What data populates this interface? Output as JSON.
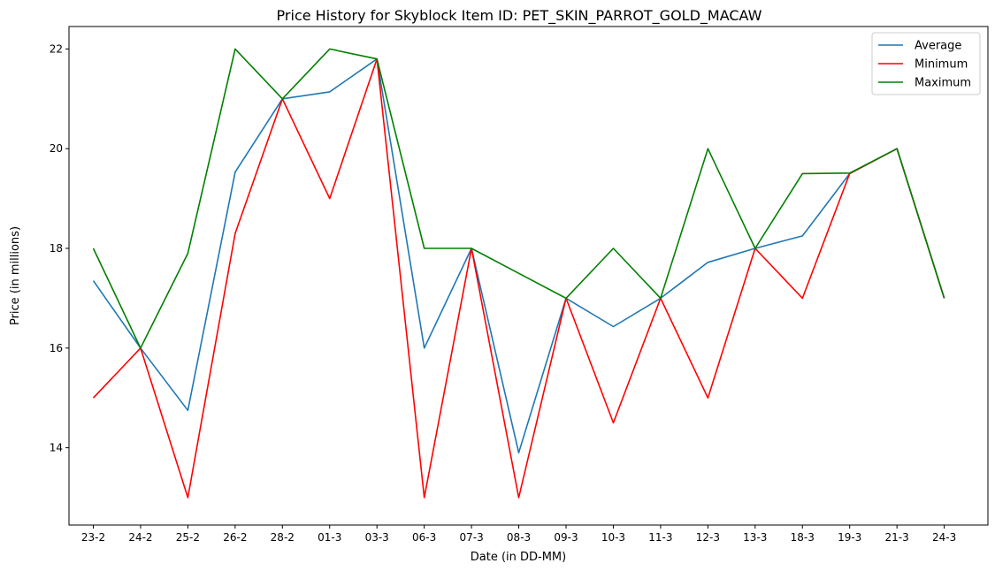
{
  "chart_data": {
    "type": "line",
    "title": "Price History for Skyblock Item ID: PET_SKIN_PARROT_GOLD_MACAW",
    "xlabel": "Date (in DD-MM)",
    "ylabel": "Price (in millions)",
    "categories": [
      "23-2",
      "24-2",
      "25-2",
      "26-2",
      "28-2",
      "01-3",
      "03-3",
      "06-3",
      "07-3",
      "08-3",
      "09-3",
      "10-3",
      "11-3",
      "12-3",
      "13-3",
      "18-3",
      "19-3",
      "21-3",
      "24-3"
    ],
    "yticks": [
      14,
      16,
      18,
      20,
      22
    ],
    "ylim": [
      12.45,
      22.45
    ],
    "grid": false,
    "legend_position": "top-right",
    "series": [
      {
        "name": "Average",
        "color": "#1f77b4",
        "values": [
          17.35,
          16.0,
          14.75,
          19.53,
          21.0,
          21.14,
          21.8,
          16.0,
          18.0,
          13.9,
          17.0,
          16.43,
          17.0,
          17.72,
          18.0,
          18.25,
          19.5,
          20.0,
          17.0
        ]
      },
      {
        "name": "Minimum",
        "color": "#ff0000",
        "values": [
          15.0,
          16.0,
          13.0,
          18.3,
          21.0,
          19.0,
          21.8,
          13.0,
          18.0,
          13.0,
          17.0,
          14.5,
          17.0,
          15.0,
          18.0,
          17.0,
          19.5,
          20.0,
          17.0
        ]
      },
      {
        "name": "Maximum",
        "color": "#008000",
        "values": [
          18.0,
          16.0,
          17.9,
          22.0,
          21.0,
          22.0,
          21.8,
          18.0,
          18.0,
          17.5,
          17.0,
          18.0,
          17.0,
          20.0,
          18.0,
          19.5,
          19.51,
          20.0,
          17.0
        ]
      }
    ]
  }
}
